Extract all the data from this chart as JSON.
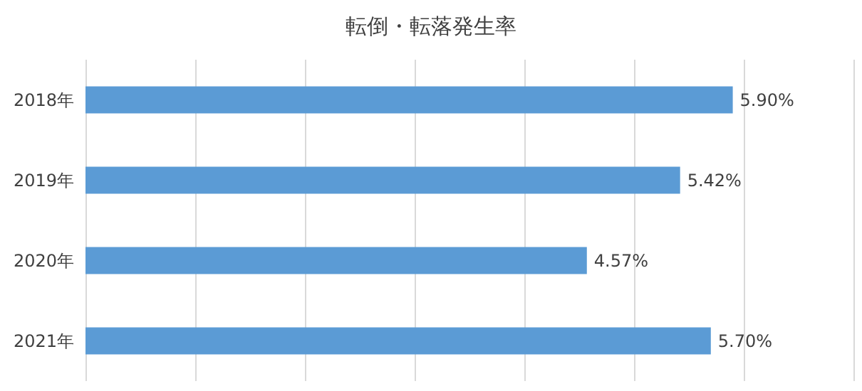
{
  "chart_data": {
    "type": "bar",
    "title": "転倒・転落発生率",
    "orientation": "horizontal",
    "categories": [
      "2018年",
      "2019年",
      "2020年",
      "2021年"
    ],
    "series": [
      {
        "color": "#5b9bd5",
        "values": [
          5.9,
          5.42,
          4.57,
          5.7
        ],
        "value_labels": [
          "5.90%",
          "5.42%",
          "4.57%",
          "5.70%"
        ]
      }
    ],
    "xlim": [
      0,
      7
    ],
    "xticks": [
      {
        "value": 0,
        "label": null
      },
      {
        "value": 1,
        "label": null
      },
      {
        "value": 2,
        "label": null
      },
      {
        "value": 3,
        "label": null
      },
      {
        "value": 4,
        "label": null
      },
      {
        "value": 5,
        "label": null
      },
      {
        "value": 6,
        "label": null
      },
      {
        "value": 7,
        "label": null
      }
    ],
    "tick_labels": "y",
    "grid": "x"
  }
}
